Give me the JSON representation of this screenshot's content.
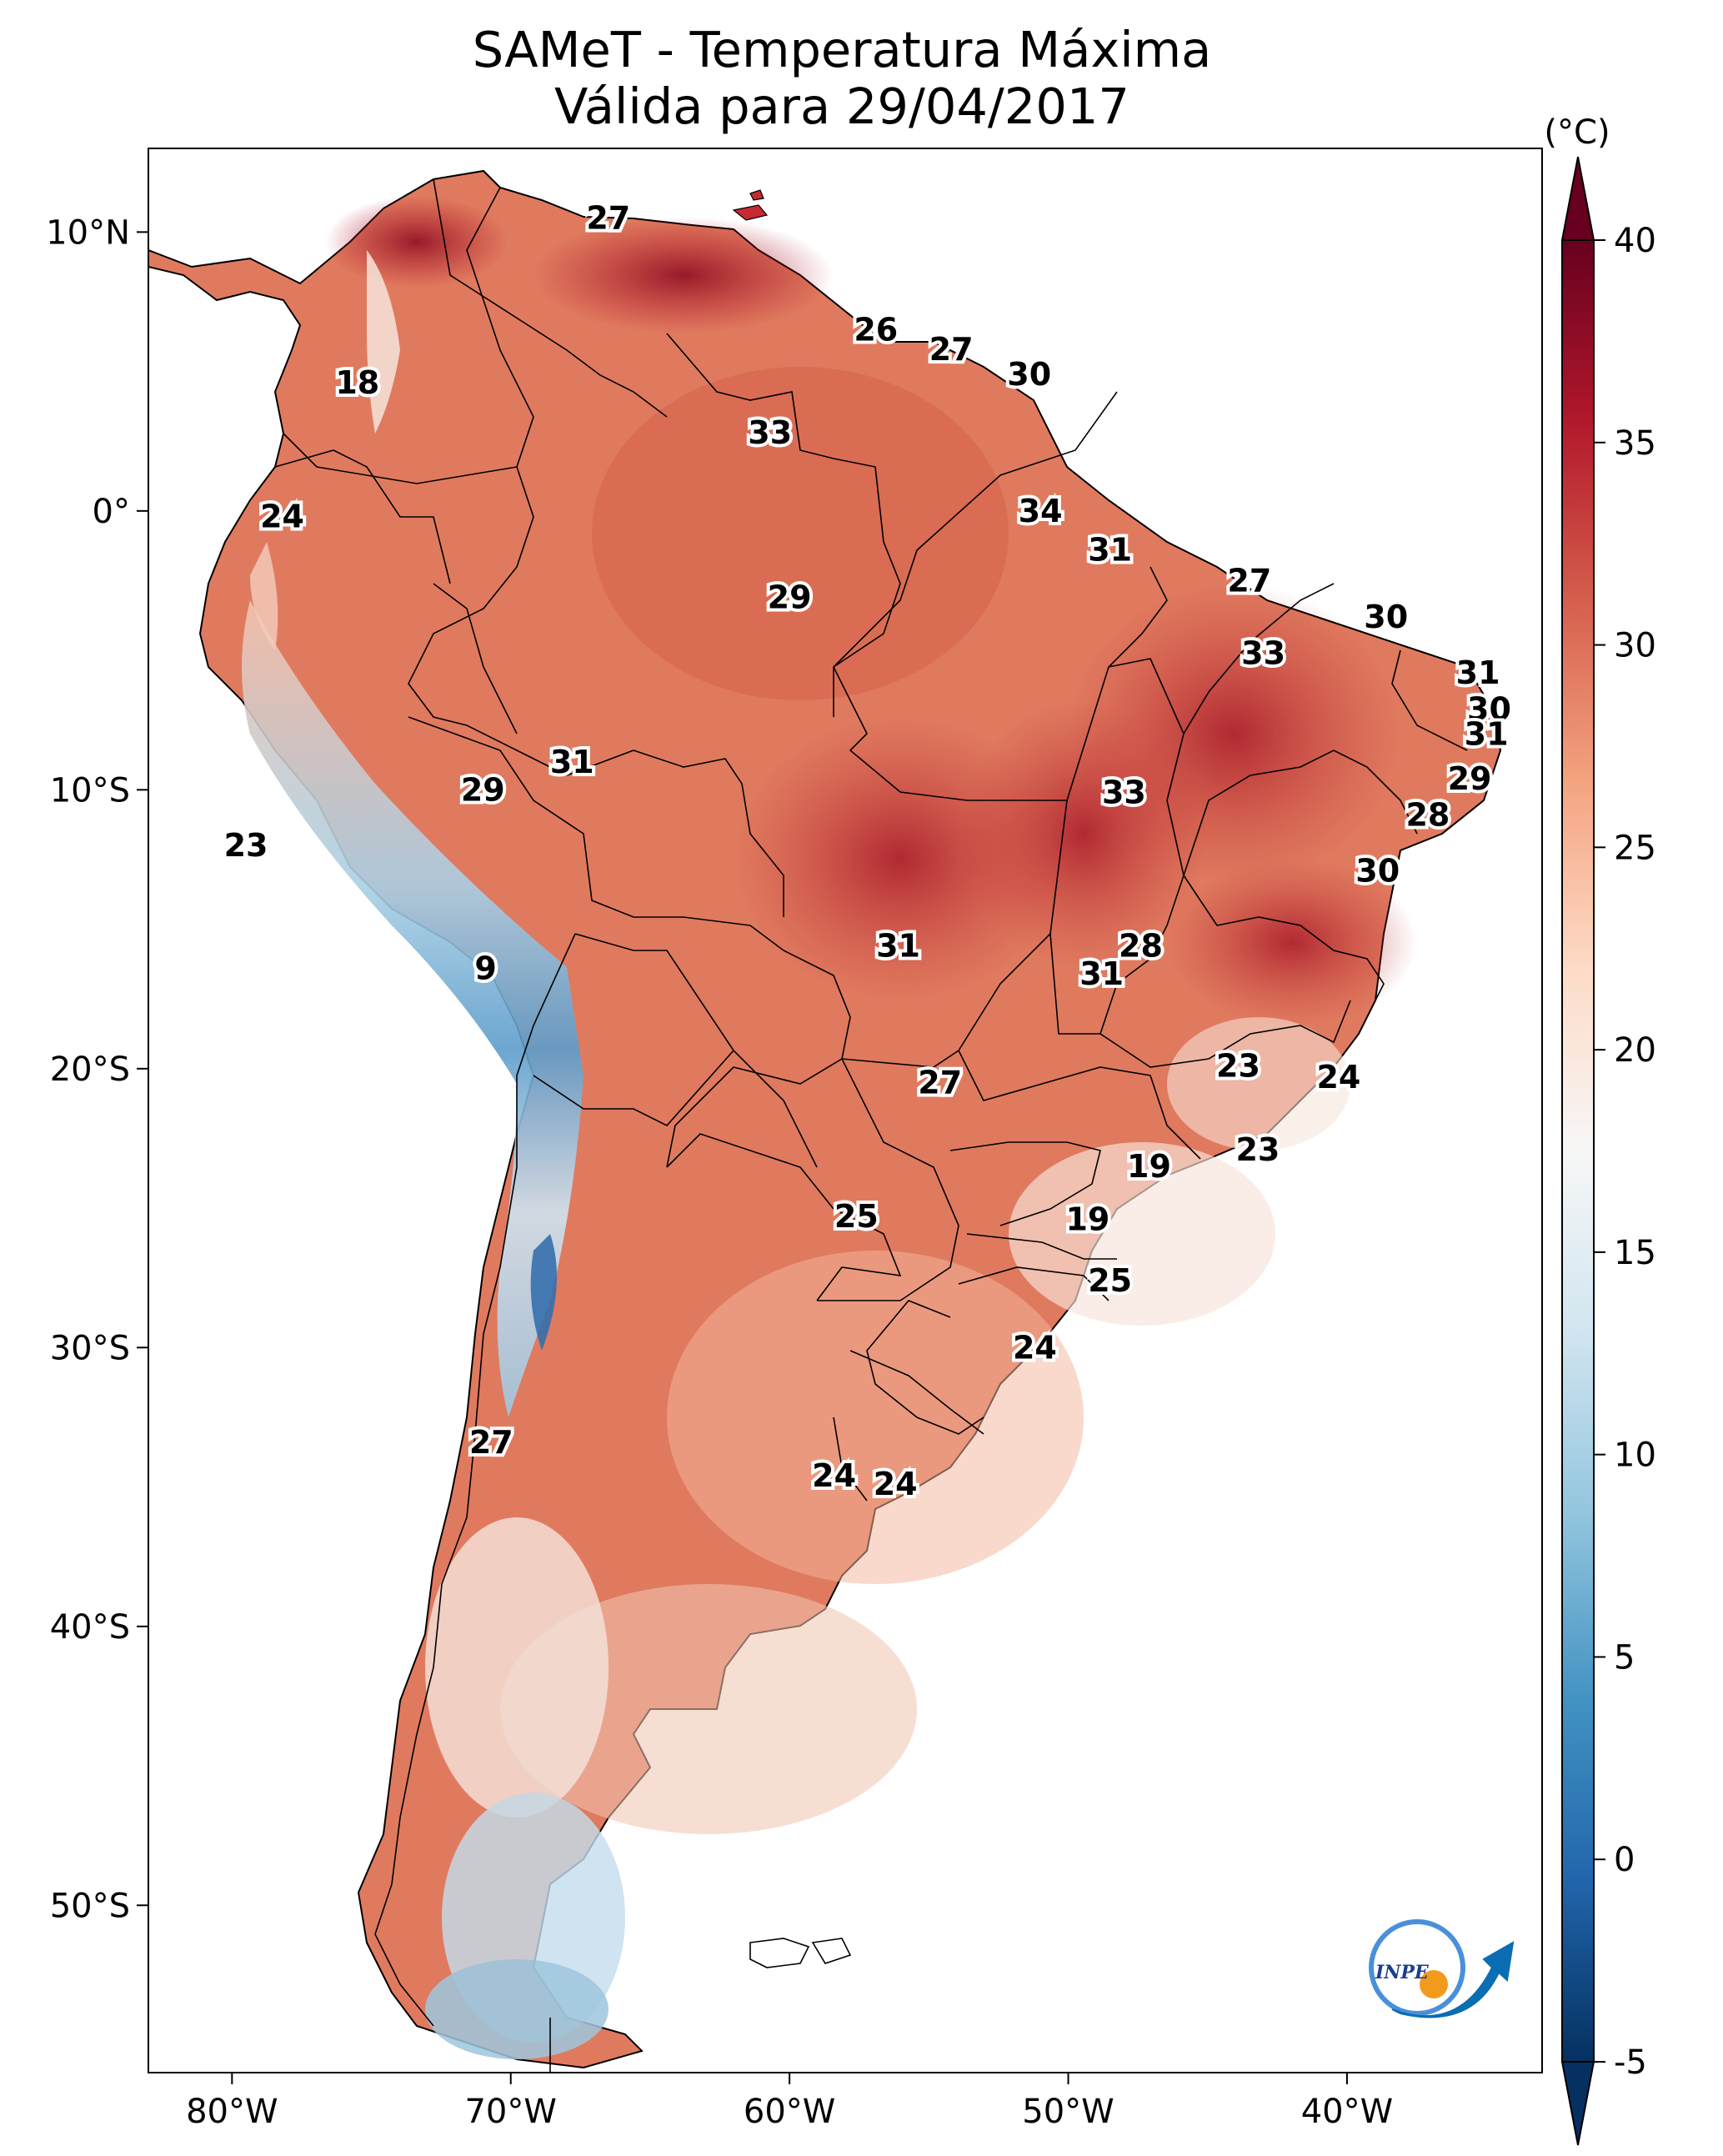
{
  "title": {
    "line1": "SAMeT - Temperatura Máxima",
    "line2": "Válida para 29/04/2017"
  },
  "map": {
    "lon_range": [
      -83,
      -33
    ],
    "lat_range": [
      -56,
      13
    ],
    "x_ticks": [
      {
        "lon": -80,
        "label": "80°W"
      },
      {
        "lon": -70,
        "label": "70°W"
      },
      {
        "lon": -60,
        "label": "60°W"
      },
      {
        "lon": -50,
        "label": "50°W"
      },
      {
        "lon": -40,
        "label": "40°W"
      }
    ],
    "y_ticks": [
      {
        "lat": 10,
        "label": "10°N"
      },
      {
        "lat": 0,
        "label": "0°"
      },
      {
        "lat": -10,
        "label": "10°S"
      },
      {
        "lat": -20,
        "label": "20°S"
      },
      {
        "lat": -30,
        "label": "30°S"
      },
      {
        "lat": -40,
        "label": "40°S"
      },
      {
        "lat": -50,
        "label": "50°S"
      }
    ]
  },
  "colorbar": {
    "unit": "(°C)",
    "range": [
      -5,
      40
    ],
    "ticks": [
      "40",
      "35",
      "30",
      "25",
      "20",
      "15",
      "10",
      "5",
      "0",
      "-5"
    ],
    "extend": "both",
    "colors": [
      "#053061",
      "#2166ac",
      "#4393c3",
      "#92c5de",
      "#d1e5f0",
      "#f7f7f7",
      "#fddbc7",
      "#f4a582",
      "#d6604d",
      "#b2182b",
      "#67001f"
    ]
  },
  "logo": {
    "text": "INPE"
  },
  "chart_data": {
    "type": "map",
    "variable": "Temperatura Máxima",
    "unit": "°C",
    "station_labels": [
      {
        "lon": -66.5,
        "lat": 10.5,
        "value": 27
      },
      {
        "lon": -75.5,
        "lat": 4.6,
        "value": 18
      },
      {
        "lon": -56.9,
        "lat": 6.5,
        "value": 26
      },
      {
        "lon": -54.2,
        "lat": 5.8,
        "value": 27
      },
      {
        "lon": -51.4,
        "lat": 4.9,
        "value": 30
      },
      {
        "lon": -60.7,
        "lat": 2.8,
        "value": 33
      },
      {
        "lon": -51.0,
        "lat": 0.0,
        "value": 34
      },
      {
        "lon": -78.2,
        "lat": -0.2,
        "value": 24
      },
      {
        "lon": -48.5,
        "lat": -1.4,
        "value": 31
      },
      {
        "lon": -43.5,
        "lat": -2.5,
        "value": 27
      },
      {
        "lon": -60.0,
        "lat": -3.1,
        "value": 29
      },
      {
        "lon": -38.6,
        "lat": -3.8,
        "value": 30
      },
      {
        "lon": -43.0,
        "lat": -5.1,
        "value": 33
      },
      {
        "lon": -35.3,
        "lat": -5.8,
        "value": 31
      },
      {
        "lon": -34.9,
        "lat": -7.1,
        "value": 30
      },
      {
        "lon": -35.0,
        "lat": -8.0,
        "value": 31
      },
      {
        "lon": -67.8,
        "lat": -9.0,
        "value": 31
      },
      {
        "lon": -71.0,
        "lat": -10.0,
        "value": 29
      },
      {
        "lon": -48.0,
        "lat": -10.1,
        "value": 33
      },
      {
        "lon": -35.6,
        "lat": -9.6,
        "value": 29
      },
      {
        "lon": -37.1,
        "lat": -10.9,
        "value": 28
      },
      {
        "lon": -79.5,
        "lat": -12.0,
        "value": 23
      },
      {
        "lon": -38.9,
        "lat": -12.9,
        "value": 30
      },
      {
        "lon": -56.1,
        "lat": -15.6,
        "value": 31
      },
      {
        "lon": -47.4,
        "lat": -15.6,
        "value": 28
      },
      {
        "lon": -48.8,
        "lat": -16.6,
        "value": 31
      },
      {
        "lon": -70.9,
        "lat": -16.4,
        "value": 9
      },
      {
        "lon": -54.6,
        "lat": -20.5,
        "value": 27
      },
      {
        "lon": -43.9,
        "lat": -19.9,
        "value": 23
      },
      {
        "lon": -40.3,
        "lat": -20.3,
        "value": 24
      },
      {
        "lon": -47.1,
        "lat": -23.5,
        "value": 19
      },
      {
        "lon": -43.2,
        "lat": -22.9,
        "value": 23
      },
      {
        "lon": -57.6,
        "lat": -25.3,
        "value": 25
      },
      {
        "lon": -49.3,
        "lat": -25.4,
        "value": 19
      },
      {
        "lon": -48.5,
        "lat": -27.6,
        "value": 25
      },
      {
        "lon": -51.2,
        "lat": -30.0,
        "value": 24
      },
      {
        "lon": -70.7,
        "lat": -33.4,
        "value": 27
      },
      {
        "lon": -58.4,
        "lat": -34.6,
        "value": 24
      },
      {
        "lon": -56.2,
        "lat": -34.9,
        "value": 24
      }
    ]
  }
}
